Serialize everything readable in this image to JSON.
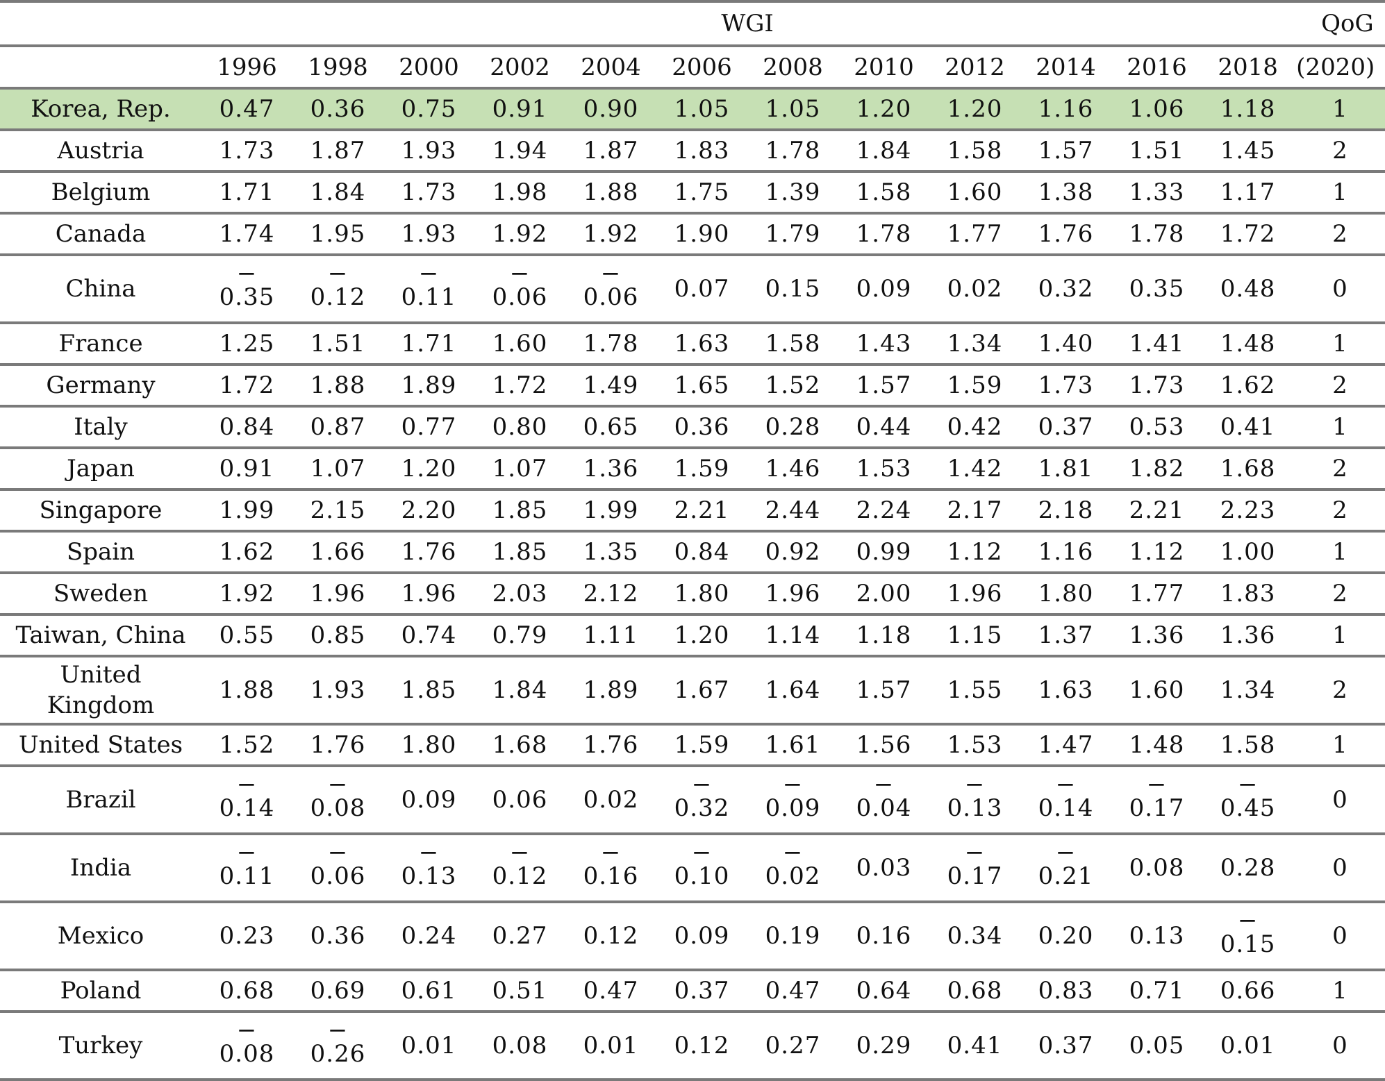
{
  "header": {
    "group_label": "WGI",
    "qog_label_line1": "QoG",
    "qog_label_line2": "(2020)",
    "years": [
      "1996",
      "1998",
      "2000",
      "2002",
      "2004",
      "2006",
      "2008",
      "2010",
      "2012",
      "2014",
      "2016",
      "2018"
    ]
  },
  "highlight_color": "#c6e0b4",
  "rows": [
    {
      "country": "Korea,  Rep.",
      "values": [
        "0.47",
        "0.36",
        "0.75",
        "0.91",
        "0.90",
        "1.05",
        "1.05",
        "1.20",
        "1.20",
        "1.16",
        "1.06",
        "1.18"
      ],
      "qog": "1",
      "highlight": true
    },
    {
      "country": "Austria",
      "values": [
        "1.73",
        "1.87",
        "1.93",
        "1.94",
        "1.87",
        "1.83",
        "1.78",
        "1.84",
        "1.58",
        "1.57",
        "1.51",
        "1.45"
      ],
      "qog": "2"
    },
    {
      "country": "Belgium",
      "values": [
        "1.71",
        "1.84",
        "1.73",
        "1.98",
        "1.88",
        "1.75",
        "1.39",
        "1.58",
        "1.60",
        "1.38",
        "1.33",
        "1.17"
      ],
      "qog": "1"
    },
    {
      "country": "Canada",
      "values": [
        "1.74",
        "1.95",
        "1.93",
        "1.92",
        "1.92",
        "1.90",
        "1.79",
        "1.78",
        "1.77",
        "1.76",
        "1.78",
        "1.72"
      ],
      "qog": "2"
    },
    {
      "country": "China",
      "values": [
        "-0.35",
        "-0.12",
        "-0.11",
        "-0.06",
        "-0.06",
        "0.07",
        "0.15",
        "0.09",
        "0.02",
        "0.32",
        "0.35",
        "0.48"
      ],
      "qog": "0"
    },
    {
      "country": "France",
      "values": [
        "1.25",
        "1.51",
        "1.71",
        "1.60",
        "1.78",
        "1.63",
        "1.58",
        "1.43",
        "1.34",
        "1.40",
        "1.41",
        "1.48"
      ],
      "qog": "1"
    },
    {
      "country": "Germany",
      "values": [
        "1.72",
        "1.88",
        "1.89",
        "1.72",
        "1.49",
        "1.65",
        "1.52",
        "1.57",
        "1.59",
        "1.73",
        "1.73",
        "1.62"
      ],
      "qog": "2"
    },
    {
      "country": "Italy",
      "values": [
        "0.84",
        "0.87",
        "0.77",
        "0.80",
        "0.65",
        "0.36",
        "0.28",
        "0.44",
        "0.42",
        "0.37",
        "0.53",
        "0.41"
      ],
      "qog": "1"
    },
    {
      "country": "Japan",
      "values": [
        "0.91",
        "1.07",
        "1.20",
        "1.07",
        "1.36",
        "1.59",
        "1.46",
        "1.53",
        "1.42",
        "1.81",
        "1.82",
        "1.68"
      ],
      "qog": "2"
    },
    {
      "country": "Singapore",
      "values": [
        "1.99",
        "2.15",
        "2.20",
        "1.85",
        "1.99",
        "2.21",
        "2.44",
        "2.24",
        "2.17",
        "2.18",
        "2.21",
        "2.23"
      ],
      "qog": "2"
    },
    {
      "country": "Spain",
      "values": [
        "1.62",
        "1.66",
        "1.76",
        "1.85",
        "1.35",
        "0.84",
        "0.92",
        "0.99",
        "1.12",
        "1.16",
        "1.12",
        "1.00"
      ],
      "qog": "1"
    },
    {
      "country": "Sweden",
      "values": [
        "1.92",
        "1.96",
        "1.96",
        "2.03",
        "2.12",
        "1.80",
        "1.96",
        "2.00",
        "1.96",
        "1.80",
        "1.77",
        "1.83"
      ],
      "qog": "2"
    },
    {
      "country": "Taiwan,  China",
      "values": [
        "0.55",
        "0.85",
        "0.74",
        "0.79",
        "1.11",
        "1.20",
        "1.14",
        "1.18",
        "1.15",
        "1.37",
        "1.36",
        "1.36"
      ],
      "qog": "1"
    },
    {
      "country": "United Kingdom",
      "country_lines": [
        "United",
        "Kingdom"
      ],
      "values": [
        "1.88",
        "1.93",
        "1.85",
        "1.84",
        "1.89",
        "1.67",
        "1.64",
        "1.57",
        "1.55",
        "1.63",
        "1.60",
        "1.34"
      ],
      "qog": "2"
    },
    {
      "country": "United States",
      "values": [
        "1.52",
        "1.76",
        "1.80",
        "1.68",
        "1.76",
        "1.59",
        "1.61",
        "1.56",
        "1.53",
        "1.47",
        "1.48",
        "1.58"
      ],
      "qog": "1"
    },
    {
      "country": "Brazil",
      "values": [
        "-0.14",
        "-0.08",
        "0.09",
        "0.06",
        "0.02",
        "-0.32",
        "-0.09",
        "-0.04",
        "-0.13",
        "-0.14",
        "-0.17",
        "-0.45"
      ],
      "qog": "0"
    },
    {
      "country": "India",
      "values": [
        "-0.11",
        "-0.06",
        "-0.13",
        "-0.12",
        "-0.16",
        "-0.10",
        "-0.02",
        "0.03",
        "-0.17",
        "-0.21",
        "0.08",
        "0.28"
      ],
      "qog": "0"
    },
    {
      "country": "Mexico",
      "values": [
        "0.23",
        "0.36",
        "0.24",
        "0.27",
        "0.12",
        "0.09",
        "0.19",
        "0.16",
        "0.34",
        "0.20",
        "0.13",
        "-0.15"
      ],
      "qog": "0"
    },
    {
      "country": "Poland",
      "values": [
        "0.68",
        "0.69",
        "0.61",
        "0.51",
        "0.47",
        "0.37",
        "0.47",
        "0.64",
        "0.68",
        "0.83",
        "0.71",
        "0.66"
      ],
      "qog": "1"
    },
    {
      "country": "Turkey",
      "values": [
        "-0.08",
        "-0.26",
        "0.01",
        "0.08",
        "0.01",
        "0.12",
        "0.27",
        "0.29",
        "0.41",
        "0.37",
        "0.05",
        "0.01"
      ],
      "qog": "0"
    }
  ]
}
